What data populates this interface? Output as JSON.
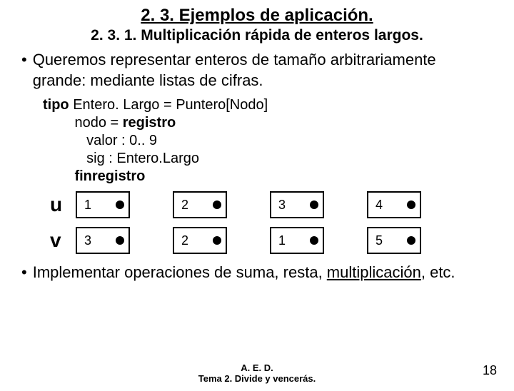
{
  "title": "2. 3. Ejemplos de aplicación.",
  "subtitle": "2. 3. 1. Multiplicación rápida de enteros largos.",
  "bullet1": "Queremos representar enteros de tamaño arbitrariamente grande: mediante listas de cifras.",
  "code": {
    "l1a": "tipo",
    "l1b": " Entero. Largo = Puntero[Nodo]",
    "l2a": "        nodo = ",
    "l2b": "registro",
    "l3": "           valor : 0.. 9",
    "l4": "           sig : Entero.Largo",
    "l5": "        finregistro"
  },
  "rows": [
    {
      "label": "u",
      "vals": [
        "1",
        "2",
        "3",
        "4"
      ]
    },
    {
      "label": "v",
      "vals": [
        "3",
        "2",
        "1",
        "5"
      ]
    }
  ],
  "bullet2_a": "Implementar operaciones de suma, resta, ",
  "bullet2_b": "multiplicación",
  "bullet2_c": ", etc.",
  "footer_l1": "A. E. D.",
  "footer_l2": "Tema 2. Divide y vencerás.",
  "page_num": "18"
}
